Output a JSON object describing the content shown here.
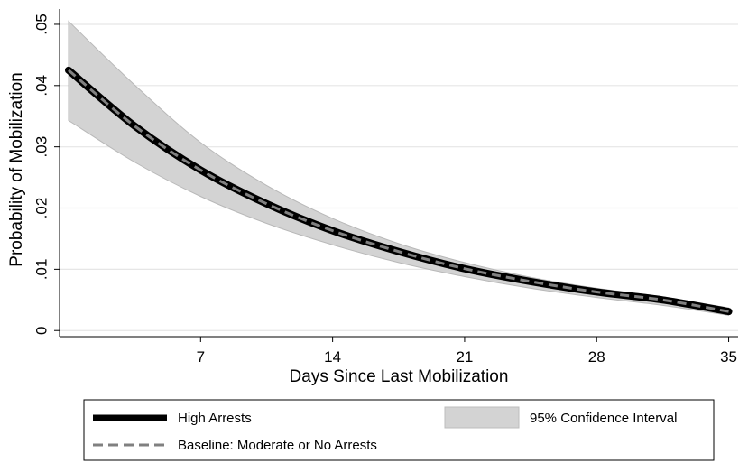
{
  "chart_data": {
    "type": "line",
    "title": "",
    "xlabel": "Days Since Last Mobilization",
    "ylabel": "Probability of Mobilization",
    "xlim": [
      0,
      35.5
    ],
    "ylim": [
      -0.001,
      0.0525
    ],
    "xticks": [
      7,
      14,
      21,
      28,
      35
    ],
    "yticks": [
      0,
      0.01,
      0.02,
      0.03,
      0.04,
      0.05
    ],
    "ytick_labels": [
      "0",
      ".01",
      ".02",
      ".03",
      ".04",
      ".05"
    ],
    "grid": true,
    "legend_position": "bottom",
    "x": [
      0,
      3.5,
      7,
      10.5,
      14,
      17.5,
      21,
      24.5,
      28,
      31.5,
      35
    ],
    "series": [
      {
        "name": "High Arrests",
        "color": "#000000",
        "style": "solid-thick",
        "values": [
          0.0425,
          0.0334,
          0.0262,
          0.0207,
          0.0163,
          0.0129,
          0.0101,
          0.008,
          0.0063,
          0.005,
          0.0031
        ]
      },
      {
        "name": "Baseline: Moderate or No Arrests",
        "color": "#808080",
        "style": "dashed",
        "values": [
          0.0425,
          0.0334,
          0.0262,
          0.0207,
          0.0163,
          0.0129,
          0.0101,
          0.008,
          0.0063,
          0.005,
          0.0031
        ]
      }
    ],
    "confidence_band": {
      "name": "95% Confidence Interval",
      "color": "#d3d3d3",
      "upper": [
        0.0505,
        0.0401,
        0.0307,
        0.0237,
        0.0183,
        0.0142,
        0.0111,
        0.0087,
        0.0069,
        0.0055,
        0.0037
      ],
      "lower": [
        0.0343,
        0.0275,
        0.0219,
        0.0175,
        0.014,
        0.0111,
        0.0088,
        0.0069,
        0.0054,
        0.0041,
        0.0025
      ]
    }
  }
}
